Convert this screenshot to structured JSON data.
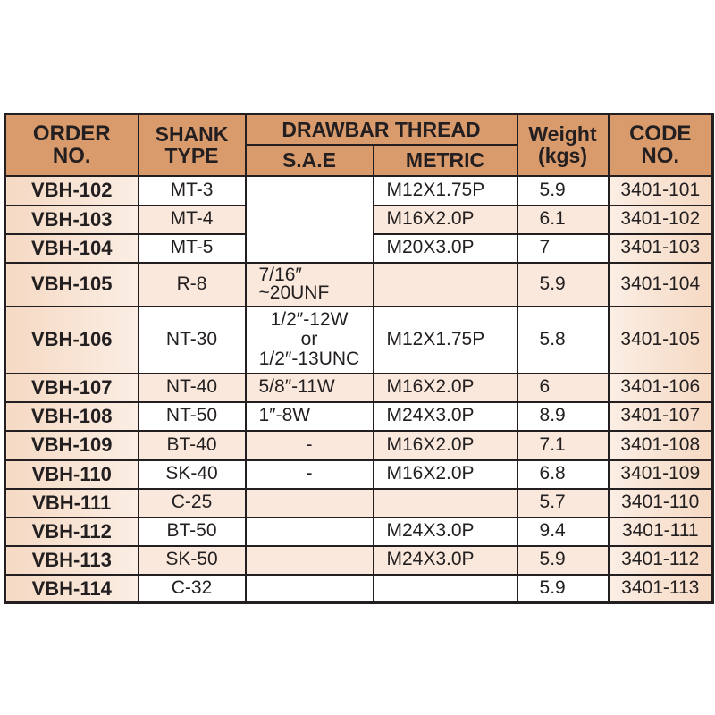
{
  "header": {
    "order_no": "ORDER NO.",
    "shank_type": "SHANK TYPE",
    "drawbar_thread": "DRAWBAR THREAD",
    "sae": "S.A.E",
    "metric": "METRIC",
    "weight": "Weight (kgs)",
    "code_no": "CODE NO."
  },
  "rows": [
    {
      "order": "VBH-102",
      "shank": "MT-3",
      "sae": "",
      "metric": "M12X1.75P",
      "weight": "5.9",
      "code": "3401-101"
    },
    {
      "order": "VBH-103",
      "shank": "MT-4",
      "sae": "",
      "metric": "M16X2.0P",
      "weight": "6.1",
      "code": "3401-102"
    },
    {
      "order": "VBH-104",
      "shank": "MT-5",
      "sae": "",
      "metric": "M20X3.0P",
      "weight": "7",
      "code": "3401-103"
    },
    {
      "order": "VBH-105",
      "shank": "R-8",
      "sae": "7/16″ ~20UNF",
      "metric": "",
      "weight": "5.9",
      "code": "3401-104"
    },
    {
      "order": "VBH-106",
      "shank": "NT-30",
      "sae": "1/2″-12W or 1/2″-13UNC",
      "metric": "M12X1.75P",
      "weight": "5.8",
      "code": "3401-105"
    },
    {
      "order": "VBH-107",
      "shank": "NT-40",
      "sae": "5/8″-11W",
      "metric": "M16X2.0P",
      "weight": "6",
      "code": "3401-106"
    },
    {
      "order": "VBH-108",
      "shank": "NT-50",
      "sae": "1″-8W",
      "metric": "M24X3.0P",
      "weight": "8.9",
      "code": "3401-107"
    },
    {
      "order": "VBH-109",
      "shank": "BT-40",
      "sae": "-",
      "metric": "M16X2.0P",
      "weight": "7.1",
      "code": "3401-108"
    },
    {
      "order": "VBH-110",
      "shank": "SK-40",
      "sae": "-",
      "metric": "M16X2.0P",
      "weight": "6.8",
      "code": "3401-109"
    },
    {
      "order": "VBH-111",
      "shank": "C-25",
      "sae": "",
      "metric": "",
      "weight": "5.7",
      "code": "3401-110"
    },
    {
      "order": "VBH-112",
      "shank": "BT-50",
      "sae": "",
      "metric": "M24X3.0P",
      "weight": "9.4",
      "code": "3401-111"
    },
    {
      "order": "VBH-113",
      "shank": "SK-50",
      "sae": "",
      "metric": "M24X3.0P",
      "weight": "5.9",
      "code": "3401-112"
    },
    {
      "order": "VBH-114",
      "shank": "C-32",
      "sae": "",
      "metric": "",
      "weight": "5.9",
      "code": "3401-113"
    }
  ],
  "colors": {
    "header": "#d99a6c",
    "shade": "#f9e8db",
    "border": "#231f20"
  }
}
